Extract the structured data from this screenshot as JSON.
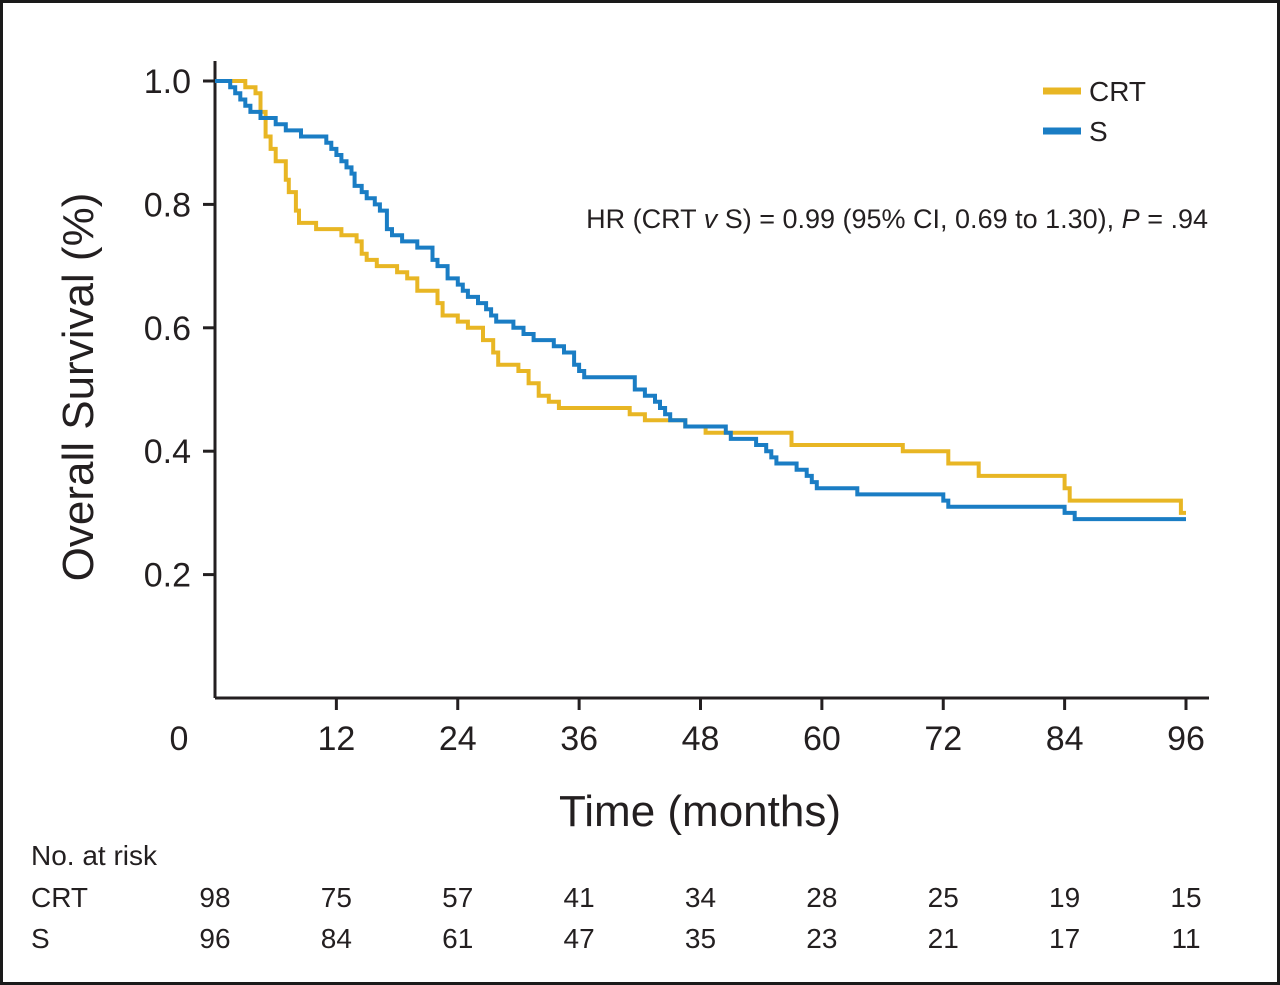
{
  "chart_data": {
    "type": "line",
    "subtype": "kaplan-meier",
    "xlabel": "Time (months)",
    "ylabel": "Overall Survival (%)",
    "xlim": [
      0,
      96
    ],
    "ylim": [
      0,
      1.0
    ],
    "x_ticks": [
      "0",
      "12",
      "24",
      "36",
      "48",
      "60",
      "72",
      "84",
      "96"
    ],
    "x_tick_values": [
      0,
      12,
      24,
      36,
      48,
      60,
      72,
      84,
      96
    ],
    "y_ticks": [
      "0.2",
      "0.4",
      "0.6",
      "0.8",
      "1.0"
    ],
    "y_tick_values": [
      0.2,
      0.4,
      0.6,
      0.8,
      1.0
    ],
    "grid": false,
    "legend_position": "top-right",
    "annotation": {
      "prefix": "HR (CRT ",
      "v": "v",
      "middle": " S) = 0.99 (95% CI, 0.69 to 1.30), ",
      "p": "P",
      "suffix": " = .94"
    },
    "series": [
      {
        "name": "CRT",
        "color": "#e8b624",
        "steps": [
          [
            0,
            1.0
          ],
          [
            3,
            0.99
          ],
          [
            4,
            0.98
          ],
          [
            4.5,
            0.95
          ],
          [
            5,
            0.91
          ],
          [
            5.5,
            0.89
          ],
          [
            6,
            0.87
          ],
          [
            7,
            0.84
          ],
          [
            7.3,
            0.82
          ],
          [
            8,
            0.79
          ],
          [
            8.3,
            0.77
          ],
          [
            10,
            0.76
          ],
          [
            12.5,
            0.75
          ],
          [
            14,
            0.74
          ],
          [
            14.5,
            0.72
          ],
          [
            15,
            0.71
          ],
          [
            16,
            0.7
          ],
          [
            18,
            0.69
          ],
          [
            19,
            0.68
          ],
          [
            20,
            0.66
          ],
          [
            22,
            0.64
          ],
          [
            22.5,
            0.62
          ],
          [
            24,
            0.61
          ],
          [
            25,
            0.6
          ],
          [
            26.5,
            0.58
          ],
          [
            27.5,
            0.56
          ],
          [
            28,
            0.54
          ],
          [
            30,
            0.53
          ],
          [
            31,
            0.51
          ],
          [
            32,
            0.49
          ],
          [
            33,
            0.48
          ],
          [
            34,
            0.47
          ],
          [
            41,
            0.46
          ],
          [
            42.5,
            0.45
          ],
          [
            46.5,
            0.44
          ],
          [
            48.5,
            0.43
          ],
          [
            57,
            0.41
          ],
          [
            68,
            0.4
          ],
          [
            72.5,
            0.38
          ],
          [
            75.5,
            0.36
          ],
          [
            84,
            0.34
          ],
          [
            84.5,
            0.32
          ],
          [
            95.5,
            0.3
          ],
          [
            96,
            0.3
          ]
        ]
      },
      {
        "name": "S",
        "color": "#1a7dc4",
        "steps": [
          [
            0,
            1.0
          ],
          [
            1.5,
            0.99
          ],
          [
            2,
            0.98
          ],
          [
            2.5,
            0.97
          ],
          [
            3,
            0.96
          ],
          [
            3.5,
            0.95
          ],
          [
            4.5,
            0.94
          ],
          [
            6,
            0.93
          ],
          [
            7,
            0.92
          ],
          [
            8.5,
            0.91
          ],
          [
            11,
            0.9
          ],
          [
            11.5,
            0.89
          ],
          [
            12,
            0.88
          ],
          [
            12.5,
            0.87
          ],
          [
            13,
            0.86
          ],
          [
            13.5,
            0.85
          ],
          [
            13.8,
            0.83
          ],
          [
            14.5,
            0.82
          ],
          [
            15,
            0.81
          ],
          [
            15.8,
            0.8
          ],
          [
            16.3,
            0.79
          ],
          [
            17,
            0.76
          ],
          [
            17.5,
            0.75
          ],
          [
            18.5,
            0.74
          ],
          [
            20,
            0.73
          ],
          [
            21.5,
            0.71
          ],
          [
            22,
            0.7
          ],
          [
            23,
            0.68
          ],
          [
            24,
            0.67
          ],
          [
            24.5,
            0.66
          ],
          [
            25,
            0.65
          ],
          [
            26,
            0.64
          ],
          [
            26.8,
            0.63
          ],
          [
            27.3,
            0.62
          ],
          [
            27.8,
            0.61
          ],
          [
            29.5,
            0.6
          ],
          [
            30.5,
            0.59
          ],
          [
            31.5,
            0.58
          ],
          [
            33.5,
            0.57
          ],
          [
            34.5,
            0.56
          ],
          [
            35.5,
            0.54
          ],
          [
            36,
            0.53
          ],
          [
            36.5,
            0.52
          ],
          [
            41.5,
            0.5
          ],
          [
            42.5,
            0.49
          ],
          [
            43.5,
            0.48
          ],
          [
            44,
            0.47
          ],
          [
            44.5,
            0.46
          ],
          [
            45,
            0.45
          ],
          [
            46.5,
            0.44
          ],
          [
            50.5,
            0.43
          ],
          [
            51,
            0.42
          ],
          [
            53.5,
            0.41
          ],
          [
            54.5,
            0.4
          ],
          [
            55,
            0.39
          ],
          [
            55.5,
            0.38
          ],
          [
            57.5,
            0.37
          ],
          [
            58.5,
            0.36
          ],
          [
            59,
            0.35
          ],
          [
            59.5,
            0.34
          ],
          [
            63.5,
            0.33
          ],
          [
            68.5,
            0.33
          ],
          [
            72,
            0.32
          ],
          [
            72.5,
            0.31
          ],
          [
            84,
            0.3
          ],
          [
            85,
            0.29
          ],
          [
            96,
            0.29
          ]
        ]
      }
    ],
    "risk_table": {
      "title": "No. at risk",
      "rows": [
        {
          "label": "CRT",
          "values": [
            "98",
            "75",
            "57",
            "41",
            "34",
            "28",
            "25",
            "19",
            "15"
          ]
        },
        {
          "label": "S",
          "values": [
            "96",
            "84",
            "61",
            "47",
            "35",
            "23",
            "21",
            "17",
            "11"
          ]
        }
      ]
    }
  }
}
